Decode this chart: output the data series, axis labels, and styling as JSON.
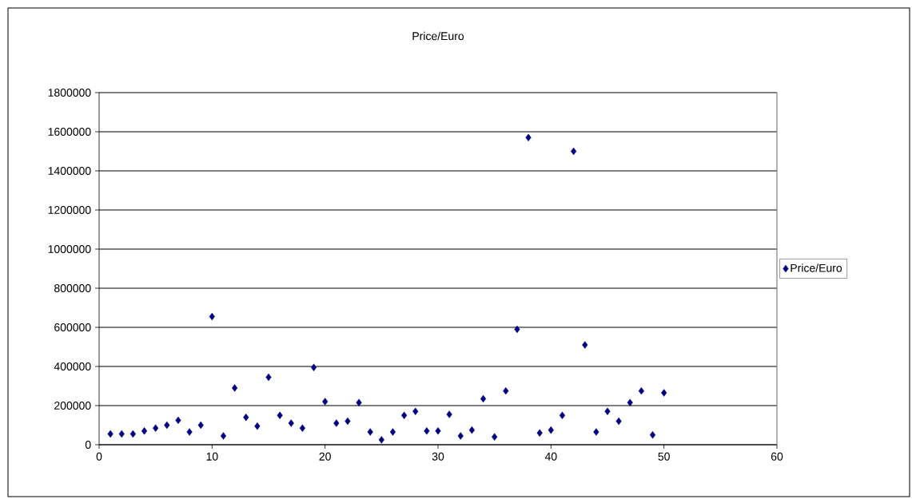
{
  "chart_data": {
    "type": "scatter",
    "title": "Price/Euro",
    "x": [
      1,
      2,
      3,
      4,
      5,
      6,
      7,
      8,
      9,
      10,
      11,
      12,
      13,
      14,
      15,
      16,
      17,
      18,
      19,
      20,
      21,
      22,
      23,
      24,
      25,
      26,
      27,
      28,
      29,
      30,
      31,
      32,
      33,
      34,
      35,
      36,
      37,
      38,
      39,
      40,
      41,
      42,
      43,
      44,
      45,
      46,
      47,
      48,
      49,
      50
    ],
    "series": [
      {
        "name": "Price/Euro",
        "color": "#000080",
        "values": [
          55000,
          55000,
          55000,
          70000,
          85000,
          100000,
          125000,
          65000,
          100000,
          655000,
          45000,
          290000,
          140000,
          95000,
          345000,
          150000,
          110000,
          85000,
          395000,
          220000,
          110000,
          120000,
          215000,
          65000,
          25000,
          65000,
          150000,
          170000,
          70000,
          70000,
          155000,
          45000,
          75000,
          235000,
          40000,
          275000,
          590000,
          1570000,
          60000,
          75000,
          150000,
          1500000,
          510000,
          65000,
          170000,
          120000,
          215000,
          275000,
          50000,
          265000
        ]
      }
    ],
    "xlim": [
      0,
      60
    ],
    "xticks": [
      0,
      10,
      20,
      30,
      40,
      50,
      60
    ],
    "ylim": [
      0,
      1800000
    ],
    "yticks": [
      0,
      200000,
      400000,
      600000,
      800000,
      1000000,
      1200000,
      1400000,
      1600000,
      1800000
    ],
    "grid": "y",
    "legend": "right",
    "marker": "diamond"
  }
}
